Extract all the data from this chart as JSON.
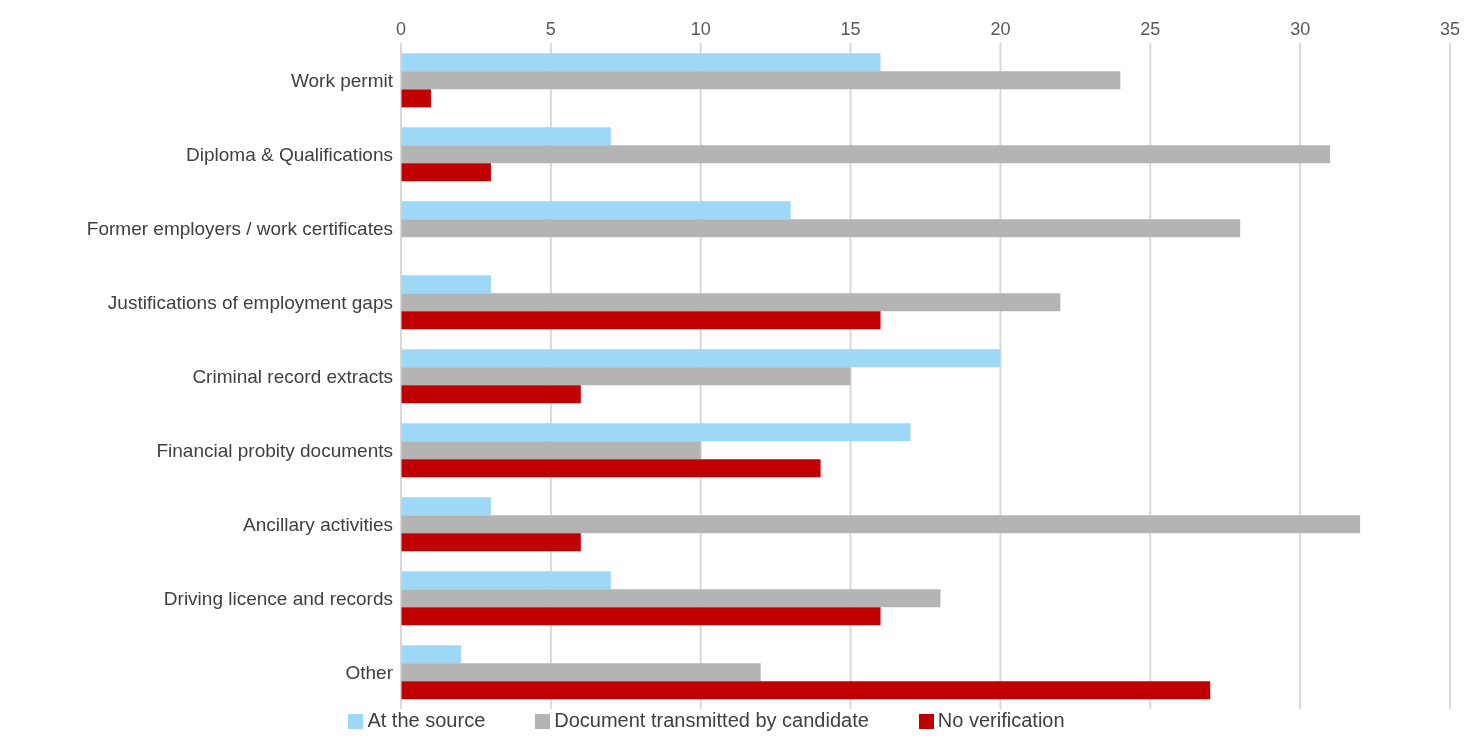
{
  "chart_data": {
    "type": "bar",
    "orientation": "horizontal",
    "categories": [
      "Work permit",
      "Diploma & Qualifications",
      "Former employers / work certificates",
      "Justifications of employment gaps",
      "Criminal record extracts",
      "Financial probity documents",
      "Ancillary activities",
      "Driving licence and records",
      "Other"
    ],
    "series": [
      {
        "name": "At the source",
        "color": "#9dd9f7",
        "values": [
          16,
          7,
          13,
          3,
          20,
          17,
          3,
          7,
          2
        ]
      },
      {
        "name": "Document transmitted by candidate",
        "color": "#b4b4b4",
        "values": [
          24,
          31,
          28,
          22,
          15,
          10,
          32,
          18,
          12
        ]
      },
      {
        "name": "No verification",
        "color": "#c00000",
        "values": [
          1,
          3,
          0,
          16,
          6,
          14,
          6,
          16,
          27
        ]
      }
    ],
    "xlim": [
      0,
      35
    ],
    "xticks": [
      0,
      5,
      10,
      15,
      20,
      25,
      30,
      35
    ],
    "grid": "x",
    "legend": "bottom"
  }
}
